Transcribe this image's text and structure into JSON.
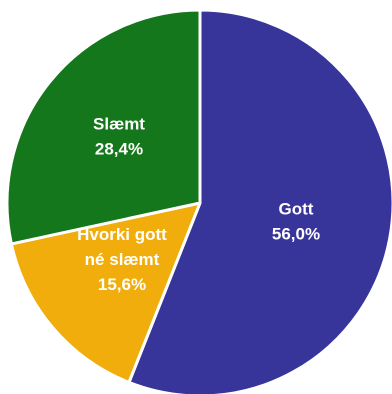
{
  "chart_data": {
    "type": "pie",
    "title": "",
    "start_angle_deg": 0,
    "direction": "clockwise",
    "slices": [
      {
        "label_lines": [
          "Gott"
        ],
        "value": 56.0,
        "value_label": "56,0%",
        "color": "#38359a"
      },
      {
        "label_lines": [
          "Hvorki gott",
          "né slæmt"
        ],
        "value": 15.6,
        "value_label": "15,6%",
        "color": "#f1ad0b"
      },
      {
        "label_lines": [
          "Slæmt"
        ],
        "value": 28.4,
        "value_label": "28,4%",
        "color": "#15771b"
      }
    ]
  }
}
